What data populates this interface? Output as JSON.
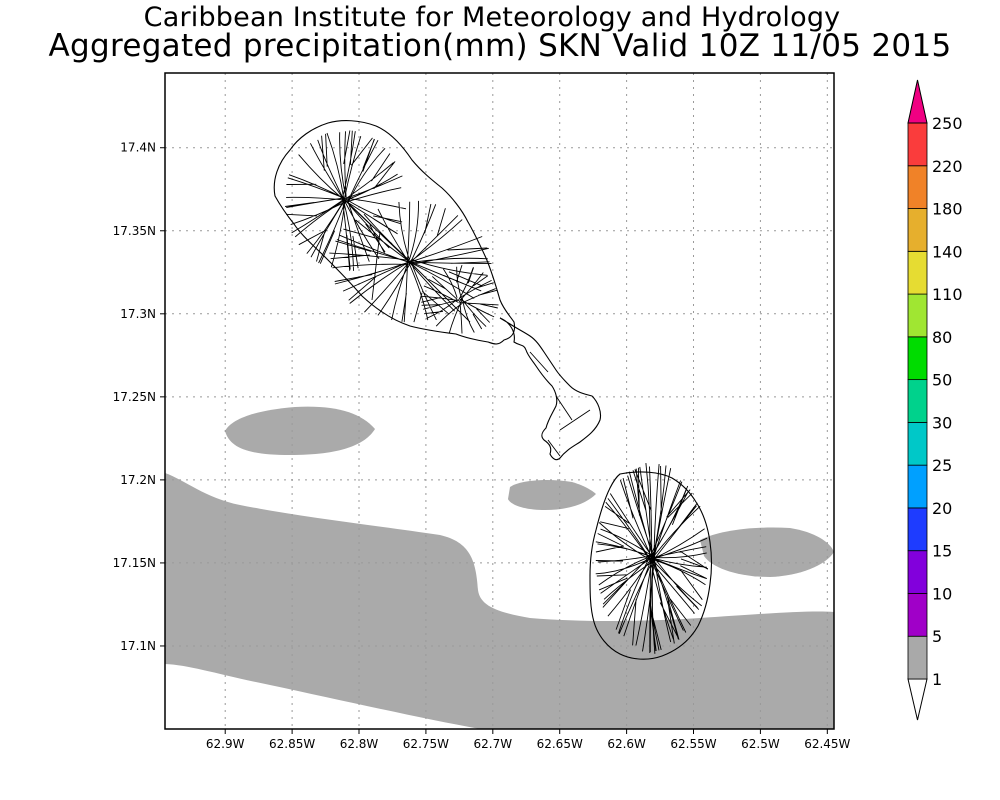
{
  "header": {
    "institute": "Caribbean Institute for Meteorology and Hydrology",
    "product": "Aggregated precipitation(mm) SKN Valid 10Z 11/05 2015"
  },
  "map": {
    "lon_range": [
      -62.945,
      -62.445
    ],
    "lat_range": [
      17.05,
      17.445
    ],
    "lon_ticks": [
      {
        "value": -62.9,
        "label": "62.9W"
      },
      {
        "value": -62.85,
        "label": "62.85W"
      },
      {
        "value": -62.8,
        "label": "62.8W"
      },
      {
        "value": -62.75,
        "label": "62.75W"
      },
      {
        "value": -62.7,
        "label": "62.7W"
      },
      {
        "value": -62.65,
        "label": "62.65W"
      },
      {
        "value": -62.6,
        "label": "62.6W"
      },
      {
        "value": -62.55,
        "label": "62.55W"
      },
      {
        "value": -62.5,
        "label": "62.5W"
      },
      {
        "value": -62.45,
        "label": "62.45W"
      }
    ],
    "lat_ticks": [
      {
        "value": 17.4,
        "label": "17.4N"
      },
      {
        "value": 17.35,
        "label": "17.35N"
      },
      {
        "value": 17.3,
        "label": "17.3N"
      },
      {
        "value": 17.25,
        "label": "17.25N"
      },
      {
        "value": 17.2,
        "label": "17.2N"
      },
      {
        "value": 17.15,
        "label": "17.15N"
      },
      {
        "value": 17.1,
        "label": "17.1N"
      }
    ],
    "gridlines": true,
    "precip_fill_color": "#aaaaaa",
    "precip_band": "1-5",
    "coastline_color": "#000000"
  },
  "legend": {
    "position": "right",
    "labels": [
      "1",
      "5",
      "10",
      "15",
      "20",
      "25",
      "30",
      "50",
      "80",
      "110",
      "140",
      "180",
      "220",
      "250"
    ],
    "bin_colors": [
      "#a9a9a9",
      "#a000c8",
      "#8200dc",
      "#1e3cff",
      "#00a0ff",
      "#00c8c8",
      "#00d28c",
      "#00dc00",
      "#a0e632",
      "#e6dc32",
      "#e6af2d",
      "#f08228",
      "#fa3c3c",
      "#f00082"
    ],
    "below_min_color": "#ffffff"
  }
}
